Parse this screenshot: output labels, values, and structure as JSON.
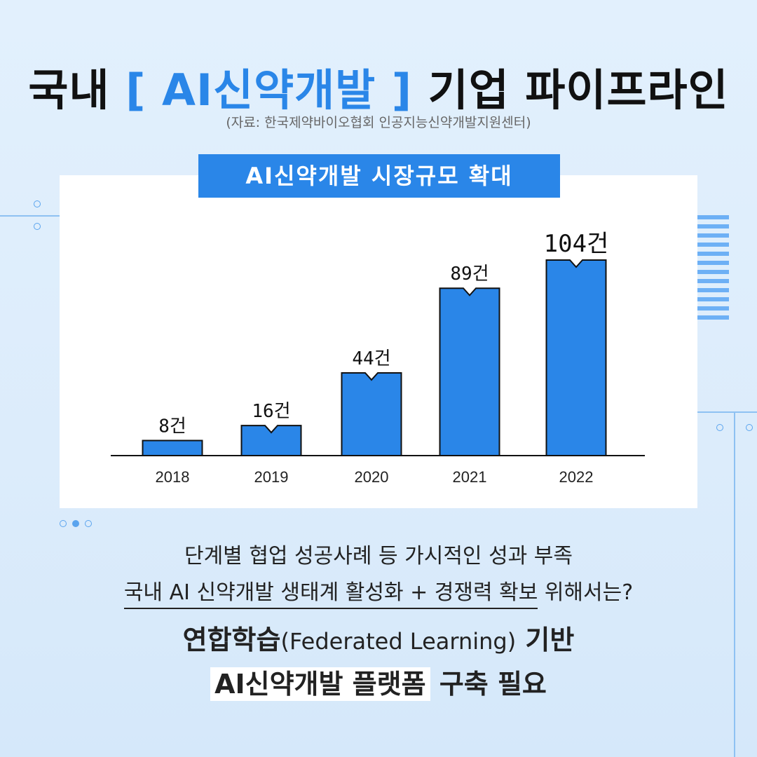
{
  "header": {
    "title_pre": "국내 ",
    "title_highlight": "[ AI신약개발 ]",
    "title_post": " 기업 파이프라인",
    "source": "(자료: 한국제약바이오협회 인공지능신약개발지원센터)"
  },
  "chart_tag": "AI신약개발 시장규모 확대",
  "chart_data": {
    "type": "bar",
    "categories": [
      "2018",
      "2019",
      "2020",
      "2021",
      "2022"
    ],
    "values": [
      8,
      16,
      44,
      89,
      104
    ],
    "data_labels": [
      "8건",
      "16건",
      "44건",
      "89건",
      "104건"
    ],
    "title": "AI신약개발 시장규모 확대",
    "xlabel": "",
    "ylabel": "",
    "ylim": [
      0,
      104
    ],
    "grid": false,
    "colors": {
      "bar": "#2a86e8",
      "outline": "#111111"
    }
  },
  "footer": {
    "line1": "단계별 협업 성공사례 등 가시적인 성과 부족",
    "line2_underlined": "국내 AI 신약개발 생태계 활성화 + 경쟁력 확보",
    "line2_rest": " 위해서는?",
    "line3_bold_a": "연합학습",
    "line3_paren": "(Federated Learning)",
    "line3_bold_b": " 기반",
    "line4_boxed": "AI신약개발 플랫폼",
    "line4_rest": " 구축 필요"
  },
  "colors": {
    "accent": "#2a86e8",
    "background": "#e2f0fd"
  }
}
